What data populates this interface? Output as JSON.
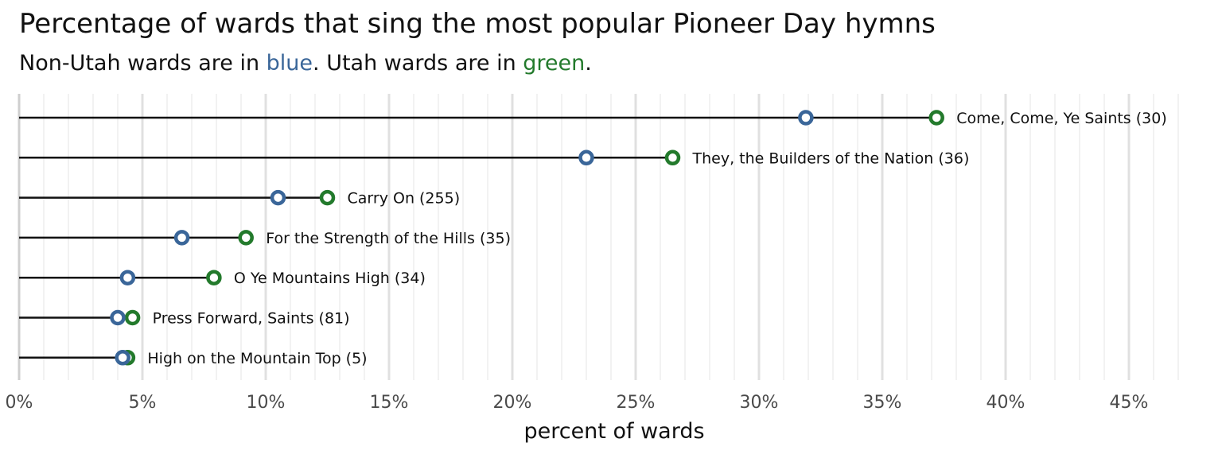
{
  "chart_data": {
    "type": "dumbbell",
    "title": "Percentage of wards that sing the most popular Pioneer Day hymns",
    "subtitle": {
      "prefix": "Non-Utah wards are in ",
      "blue_word": "blue",
      "middle": ". Utah wards are in ",
      "green_word": "green",
      "suffix": "."
    },
    "xlabel": "percent of wards",
    "xlim": [
      0,
      48
    ],
    "x_ticks": [
      0,
      5,
      10,
      15,
      20,
      25,
      30,
      35,
      40,
      45
    ],
    "x_tick_labels": [
      "0%",
      "5%",
      "10%",
      "15%",
      "20%",
      "25%",
      "30%",
      "35%",
      "40%",
      "45%"
    ],
    "grid": true,
    "colors": {
      "non_utah": "#3a6699",
      "utah": "#237a2c",
      "segment": "#111111"
    },
    "hymns": [
      {
        "label": "Come, Come, Ye Saints (30)",
        "non_utah": 31.9,
        "utah": 37.2
      },
      {
        "label": "They, the Builders of the Nation (36)",
        "non_utah": 23.0,
        "utah": 26.5
      },
      {
        "label": "Carry On (255)",
        "non_utah": 10.5,
        "utah": 12.5
      },
      {
        "label": "For the Strength of the Hills (35)",
        "non_utah": 6.6,
        "utah": 9.2
      },
      {
        "label": "O Ye Mountains High (34)",
        "non_utah": 4.4,
        "utah": 7.9
      },
      {
        "label": "Press Forward, Saints (81)",
        "non_utah": 4.0,
        "utah": 4.6
      },
      {
        "label": "High on the Mountain Top (5)",
        "non_utah": 4.2,
        "utah": 4.4
      }
    ]
  }
}
